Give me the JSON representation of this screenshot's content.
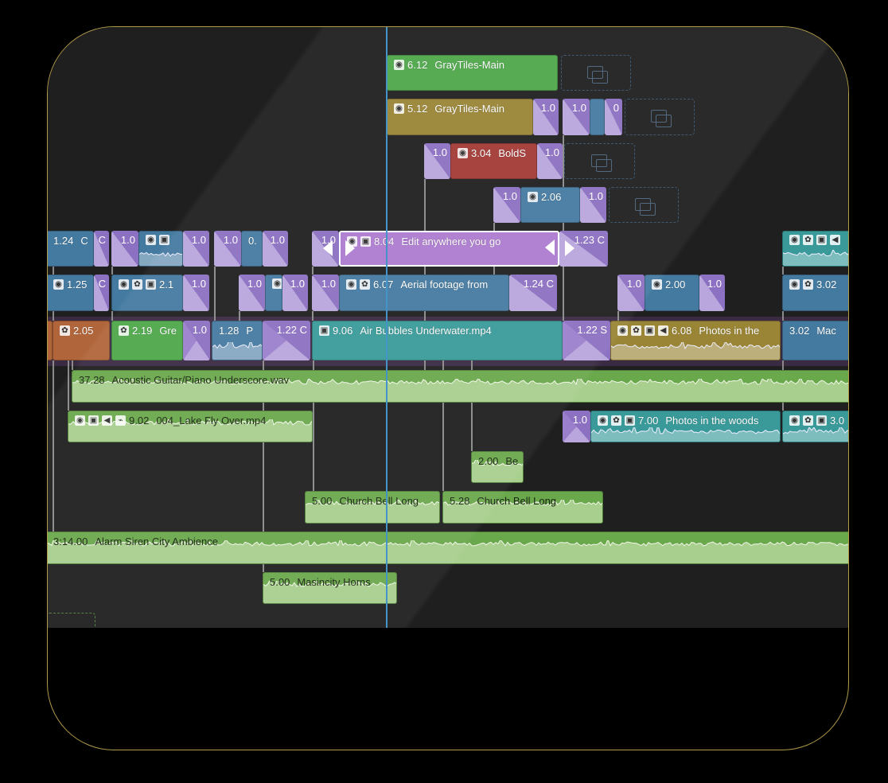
{
  "colors": {
    "frame_border": "#b39a4a",
    "background": "#1f1f1f",
    "playhead": "#3b8ec4",
    "transition": "#8c70c2",
    "storyline_band": "#3a2a42"
  },
  "icon_legend": {
    "fx": "effects-icon",
    "palette": "color-palette-icon",
    "photo": "image-icon",
    "audio": "speaker-icon",
    "keyframe": "keyframe-icon"
  },
  "clips": [
    {
      "type": "clip",
      "color": "#4ea84a",
      "icons": [
        "fx"
      ],
      "duration": "6.12",
      "name": "GrayTiles-Main"
    },
    {
      "type": "placeholder"
    },
    {
      "type": "clip",
      "color": "#9a8536",
      "icons": [
        "fx"
      ],
      "duration": "5.12",
      "name": "GrayTiles-Main"
    },
    {
      "type": "transition",
      "duration": "1.0"
    },
    {
      "type": "transition",
      "duration": "1.0"
    },
    {
      "type": "clip",
      "color": "#447aa0",
      "icons": [],
      "duration": "",
      "name": ""
    },
    {
      "type": "transition",
      "duration": "0"
    },
    {
      "type": "placeholder"
    },
    {
      "type": "transition",
      "duration": "1.0"
    },
    {
      "type": "clip",
      "color": "#a33a36",
      "icons": [
        "fx"
      ],
      "duration": "3.04",
      "name": "BoldS"
    },
    {
      "type": "transition",
      "duration": "1.0"
    },
    {
      "type": "placeholder"
    },
    {
      "type": "transition",
      "duration": "1.0"
    },
    {
      "type": "clip",
      "color": "#447aa0",
      "icons": [
        "fx"
      ],
      "duration": "2.06",
      "name": ""
    },
    {
      "type": "transition",
      "duration": "1.0"
    },
    {
      "type": "placeholder"
    },
    {
      "type": "clip",
      "color": "#447aa0",
      "icons": [],
      "duration": "1.24",
      "name": "C"
    },
    {
      "type": "transition",
      "duration": "C"
    },
    {
      "type": "transition",
      "duration": "1.0"
    },
    {
      "type": "clip",
      "color": "#447aa0",
      "icons": [
        "fx",
        "photo"
      ],
      "duration": "",
      "name": "",
      "wave": true
    },
    {
      "type": "transition",
      "duration": "1.0"
    },
    {
      "type": "transition",
      "duration": "1.0"
    },
    {
      "type": "clip",
      "color": "#447aa0",
      "icons": [],
      "duration": "0.",
      "name": ""
    },
    {
      "type": "transition",
      "duration": "1.0"
    },
    {
      "type": "transition",
      "duration": "1.0"
    },
    {
      "type": "clip",
      "color": "#ad7bcf",
      "icons": [
        "fx",
        "photo"
      ],
      "duration": "8.04",
      "name": "Edit anywhere you go",
      "selected": true
    },
    {
      "type": "transition",
      "duration": "1.23 C"
    },
    {
      "type": "clip",
      "color": "#3a9a9a",
      "icons": [
        "fx",
        "palette",
        "photo",
        "audio"
      ],
      "duration": "",
      "name": "",
      "wave": true
    },
    {
      "type": "clip",
      "color": "#447aa0",
      "icons": [
        "fx"
      ],
      "duration": "1.25",
      "name": ""
    },
    {
      "type": "transition",
      "duration": "C"
    },
    {
      "type": "clip",
      "color": "#447aa0",
      "icons": [
        "fx",
        "palette",
        "photo"
      ],
      "duration": "2.1",
      "name": ""
    },
    {
      "type": "transition",
      "duration": "1.0"
    },
    {
      "type": "transition",
      "duration": "1.0"
    },
    {
      "type": "clip",
      "color": "#447aa0",
      "icons": [
        "fx"
      ],
      "duration": "",
      "name": ""
    },
    {
      "type": "transition",
      "duration": "1.0"
    },
    {
      "type": "transition",
      "duration": "1.0"
    },
    {
      "type": "clip",
      "color": "#447aa0",
      "icons": [
        "fx",
        "palette"
      ],
      "duration": "6.07",
      "name": "Aerial footage from"
    },
    {
      "type": "transition",
      "duration": "1.24 C"
    },
    {
      "type": "transition",
      "duration": "1.0"
    },
    {
      "type": "clip",
      "color": "#447aa0",
      "icons": [
        "fx"
      ],
      "duration": "2.00",
      "name": ""
    },
    {
      "type": "transition",
      "duration": "1.0"
    },
    {
      "type": "clip",
      "color": "#447aa0",
      "icons": [
        "fx",
        "palette"
      ],
      "duration": "3.02",
      "name": ""
    },
    {
      "type": "clip",
      "color": "#b0653a",
      "icons": [],
      "duration": "",
      "name": ""
    },
    {
      "type": "clip",
      "color": "#b0653a",
      "icons": [
        "palette"
      ],
      "duration": "2.05",
      "name": ""
    },
    {
      "type": "clip",
      "color": "#4ea84a",
      "icons": [
        "palette"
      ],
      "duration": "2.19",
      "name": "Gre"
    },
    {
      "type": "transition",
      "duration": "1.0"
    },
    {
      "type": "clip",
      "color": "#447aa0",
      "icons": [],
      "duration": "1.28",
      "name": "P",
      "wave": true
    },
    {
      "type": "transition",
      "duration": "1.22 C"
    },
    {
      "type": "clip",
      "color": "#3a9a9a",
      "icons": [
        "photo"
      ],
      "duration": "9.06",
      "name": "Air Bubbles Underwater.mp4"
    },
    {
      "type": "transition",
      "duration": "1.22 S"
    },
    {
      "type": "clip",
      "color": "#9a8536",
      "icons": [
        "fx",
        "palette",
        "photo",
        "audio"
      ],
      "duration": "6.08",
      "name": "Photos in the",
      "wave": true
    },
    {
      "type": "clip",
      "color": "#447aa0",
      "icons": [],
      "duration": "3.02",
      "name": "Mac"
    },
    {
      "type": "clip",
      "color": "#6aa84c",
      "audio": true,
      "icons": [],
      "duration": "37.28",
      "name": "Acoustic Guitar/Piano Underscore.wav"
    },
    {
      "type": "clip",
      "color": "#6aa84c",
      "audio": true,
      "icons": [
        "fx",
        "photo",
        "audio",
        "keyframe"
      ],
      "duration": "9.02",
      "name": "004_Lake Fly Over.mp4"
    },
    {
      "type": "transition",
      "duration": "1.0"
    },
    {
      "type": "clip",
      "color": "#3a9a9a",
      "icons": [
        "fx",
        "palette",
        "photo"
      ],
      "duration": "7.00",
      "name": "Photos in the woods",
      "wave": true
    },
    {
      "type": "clip",
      "color": "#3a9a9a",
      "icons": [
        "fx",
        "palette",
        "photo"
      ],
      "duration": "3.0",
      "name": "",
      "wave": true
    },
    {
      "type": "clip",
      "color": "#6aa84c",
      "audio": true,
      "icons": [],
      "duration": "2.00",
      "name": "Be"
    },
    {
      "type": "clip",
      "color": "#6aa84c",
      "audio": true,
      "icons": [],
      "duration": "5.00",
      "name": "Church Bell Long"
    },
    {
      "type": "clip",
      "color": "#6aa84c",
      "audio": true,
      "icons": [],
      "duration": "5.28",
      "name": "Church Bell Long"
    },
    {
      "type": "clip",
      "color": "#6aa84c",
      "audio": true,
      "icons": [],
      "duration": "3:14.00",
      "name": "Alarm Siren City Ambience"
    },
    {
      "type": "clip",
      "color": "#6aa84c",
      "audio": true,
      "icons": [],
      "duration": "5.00",
      "name": "Masincity Horns"
    }
  ]
}
